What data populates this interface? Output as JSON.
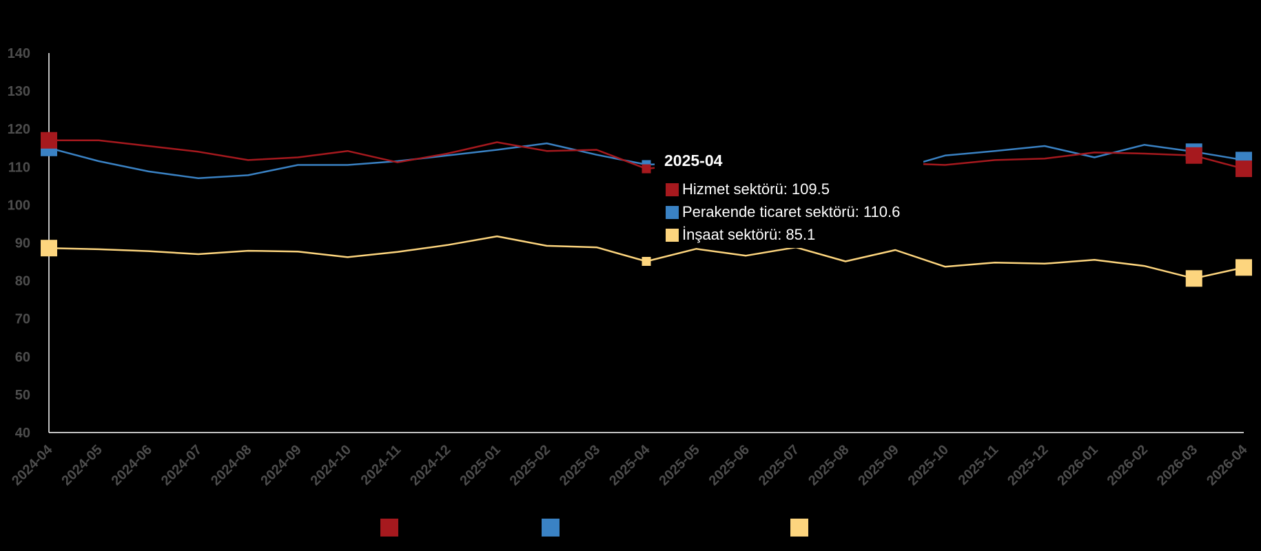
{
  "chart_data": {
    "type": "line",
    "x": [
      "2024-04",
      "2024-05",
      "2024-06",
      "2024-07",
      "2024-08",
      "2024-09",
      "2024-10",
      "2024-11",
      "2024-12",
      "2025-01",
      "2025-02",
      "2025-03",
      "2025-04",
      "2025-05",
      "2025-06",
      "2025-07",
      "2025-08",
      "2025-09",
      "2025-10",
      "2025-11",
      "2025-12",
      "2026-01",
      "2026-02",
      "2026-03",
      "2026-04"
    ],
    "ylim": [
      40,
      140
    ],
    "yticks": [
      40,
      50,
      60,
      70,
      80,
      90,
      100,
      110,
      120,
      130,
      140
    ],
    "series": [
      {
        "name": "Hizmet sektörü",
        "color": "#a6191e",
        "values": [
          117.0,
          117.0,
          115.5,
          114.0,
          111.8,
          112.5,
          114.2,
          111.2,
          113.5,
          116.5,
          114.2,
          114.5,
          109.5,
          111.0,
          110.8,
          110.0,
          110.8,
          111.0,
          110.5,
          111.8,
          112.2,
          113.8,
          113.5,
          113.0,
          109.5
        ]
      },
      {
        "name": "Perakende ticaret sektörü",
        "color": "#3a82c4",
        "values": [
          115.0,
          111.5,
          108.8,
          107.0,
          107.8,
          110.5,
          110.5,
          111.5,
          113.0,
          114.5,
          116.2,
          113.2,
          110.6,
          111.0,
          108.5,
          107.8,
          108.8,
          109.2,
          113.0,
          114.2,
          115.5,
          112.5,
          115.8,
          114.0,
          111.8
        ]
      },
      {
        "name": "İnşaat sektörü",
        "color": "#fdd57e",
        "values": [
          88.6,
          88.3,
          87.8,
          87.0,
          87.9,
          87.7,
          86.2,
          87.6,
          89.4,
          91.7,
          89.2,
          88.8,
          85.1,
          88.4,
          86.6,
          88.8,
          85.1,
          88.1,
          83.7,
          84.8,
          84.5,
          85.5,
          83.9,
          80.6,
          83.5
        ]
      }
    ],
    "markers": [
      0,
      23,
      24
    ],
    "small_markers": [
      12
    ],
    "tooltip": {
      "title": "2025-04",
      "rows": [
        {
          "label": "Hizmet sektörü: 109.5",
          "color": "#a6191e"
        },
        {
          "label": "Perakende ticaret sektörü: 110.6",
          "color": "#3a82c4"
        },
        {
          "label": "İnşaat sektörü: 85.1",
          "color": "#fdd57e"
        }
      ]
    },
    "legend": {
      "position": "bottom",
      "colors": [
        "#a6191e",
        "#3a82c4",
        "#fdd57e"
      ]
    }
  }
}
